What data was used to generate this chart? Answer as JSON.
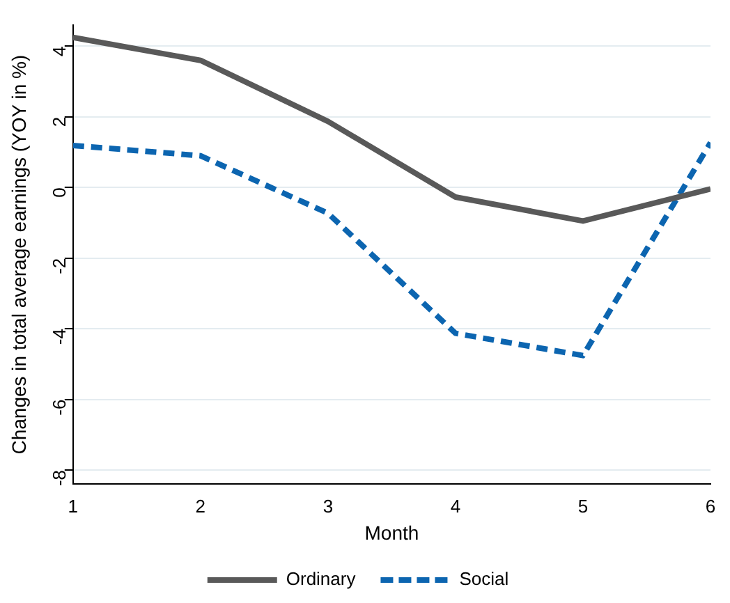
{
  "chart_data": {
    "type": "line",
    "xlabel": "Month",
    "ylabel": "Changes in total average earnings (YOY in %)",
    "x": [
      1,
      2,
      3,
      4,
      5,
      6
    ],
    "xlim": [
      1,
      6
    ],
    "xticks": [
      1,
      2,
      3,
      4,
      5,
      6
    ],
    "ylim": [
      -8.4,
      4.6
    ],
    "yticks": [
      -8,
      -6,
      -4,
      -2,
      0,
      2,
      4
    ],
    "series": [
      {
        "name": "Ordinary",
        "color": "#595959",
        "line_style": "solid",
        "values": [
          4.25,
          3.6,
          1.87,
          -0.27,
          -0.95,
          -0.04
        ]
      },
      {
        "name": "Social",
        "color": "#0c65b0",
        "line_style": "dashed",
        "values": [
          1.19,
          0.9,
          -0.73,
          -4.13,
          -4.76,
          1.27
        ]
      }
    ],
    "grid": "y",
    "legend": "bottom",
    "marker": "none"
  }
}
